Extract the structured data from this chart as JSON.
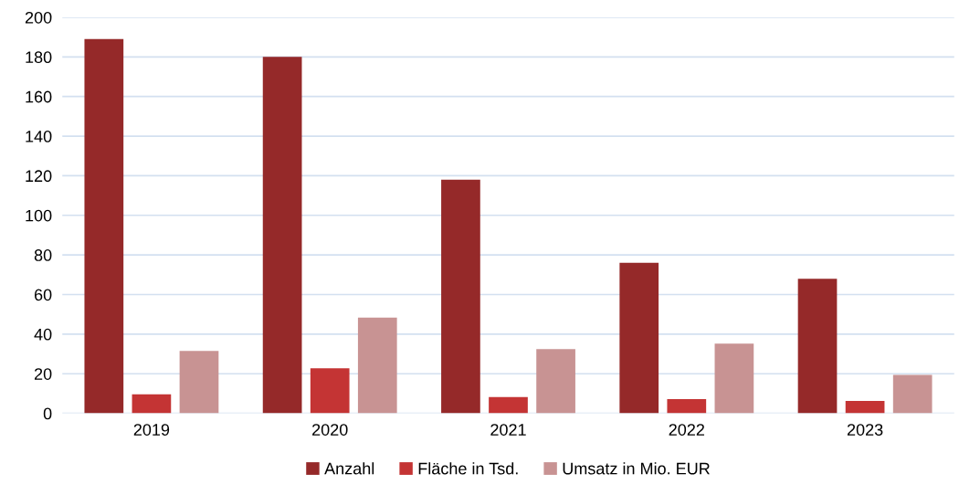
{
  "chart_data": {
    "type": "bar",
    "categories": [
      "2019",
      "2020",
      "2021",
      "2022",
      "2023"
    ],
    "series": [
      {
        "name": "Anzahl",
        "color": "#952929",
        "values": [
          189,
          180,
          118,
          76,
          68
        ]
      },
      {
        "name": "Fläche in Tsd.",
        "color": "#c43434",
        "values": [
          9.6,
          22.7,
          8.2,
          7.2,
          6.3
        ]
      },
      {
        "name": "Umsatz in Mio. EUR",
        "color": "#c89393",
        "values": [
          31.5,
          48.3,
          32.4,
          35.2,
          19.4
        ]
      }
    ],
    "ylim": [
      0,
      200
    ],
    "yticks": [
      0,
      20,
      40,
      60,
      80,
      100,
      120,
      140,
      160,
      180,
      200
    ],
    "grid": "y",
    "legend": "bottom"
  }
}
